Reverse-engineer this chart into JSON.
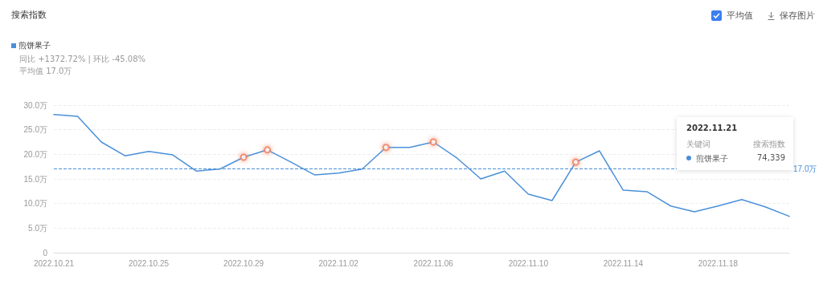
{
  "chart_data": {
    "type": "line",
    "title": "搜索指数",
    "subtitle": "同比 +1372.72% | 环比 -45.08%\n平均值 17.0万",
    "x": [
      "2022-10-21",
      "2022-10-22",
      "2022-10-23",
      "2022-10-24",
      "2022-10-25",
      "2022-10-26",
      "2022-10-27",
      "2022-10-28",
      "2022-10-29",
      "2022-10-30",
      "2022-10-31",
      "2022-11-01",
      "2022-11-02",
      "2022-11-03",
      "2022-11-04",
      "2022-11-05",
      "2022-11-06",
      "2022-11-07",
      "2022-11-08",
      "2022-11-09",
      "2022-11-10",
      "2022-11-11",
      "2022-11-12",
      "2022-11-13",
      "2022-11-14",
      "2022-11-15",
      "2022-11-16",
      "2022-11-17",
      "2022-11-18",
      "2022-11-19",
      "2022-11-20",
      "2022-11-21"
    ],
    "series": [
      {
        "name": "煎饼果子",
        "color": "#4a90d9",
        "values": [
          28.1,
          27.7,
          22.5,
          19.7,
          20.6,
          19.9,
          16.6,
          17.0,
          19.4,
          20.9,
          18.4,
          15.8,
          16.2,
          17.0,
          21.4,
          21.4,
          22.5,
          19.2,
          15.0,
          16.6,
          11.9,
          10.6,
          18.4,
          20.7,
          12.7,
          12.4,
          9.5,
          8.3,
          9.5,
          10.8,
          9.3,
          7.4
        ]
      },
      {
        "type": "scatter",
        "color": "#f07c5a",
        "x": [
          "2022-10-29",
          "2022-10-30",
          "2022-11-04",
          "2022-11-06",
          "2022-11-12"
        ],
        "values": [
          19.4,
          20.9,
          21.4,
          22.5,
          18.4
        ]
      }
    ],
    "xlim": [
      "2022-10-21",
      "2022-11-21"
    ],
    "xticks": [
      {
        "value": "2022-10-21",
        "label": "2022.10.21"
      },
      {
        "value": "2022-10-25",
        "label": "2022.10.25"
      },
      {
        "value": "2022-10-29",
        "label": "2022.10.29"
      },
      {
        "value": "2022-11-02",
        "label": "2022.11.02"
      },
      {
        "value": "2022-11-06",
        "label": "2022.11.06"
      },
      {
        "value": "2022-11-10",
        "label": "2022.11.10"
      },
      {
        "value": "2022-11-14",
        "label": "2022.11.14"
      },
      {
        "value": "2022-11-18",
        "label": "2022.11.18"
      }
    ],
    "ylim": [
      0,
      30
    ],
    "yticks": [
      0,
      {
        "value": 5,
        "label": "5.0万"
      },
      {
        "value": 10,
        "label": "10.0万"
      },
      {
        "value": 15,
        "label": "15.0万"
      },
      {
        "value": 20,
        "label": "20.0万"
      },
      {
        "value": 25,
        "label": "25.0万"
      },
      {
        "value": 30,
        "label": "30.0万"
      }
    ],
    "ref_lines": [
      {
        "axis": "y",
        "value": 17.0,
        "label": "17.0万",
        "color": "#4a90d9",
        "line_style": "dashed"
      }
    ],
    "annotations": [
      "平均值",
      "保存图片",
      "2022.11.21",
      "关键词",
      "搜索指数",
      "煎饼果子",
      "74,339"
    ],
    "grid": "y",
    "legend": "top left",
    "marker": "none",
    "line_style": "solid"
  }
}
